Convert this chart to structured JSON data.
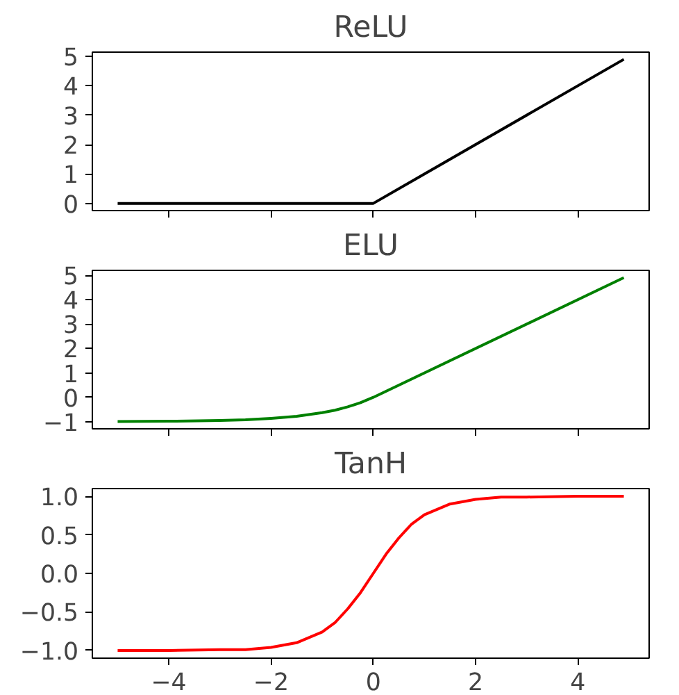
{
  "chart_data": [
    {
      "type": "line",
      "title": "ReLU",
      "xlim": [
        -5.495,
        5.395
      ],
      "xticks": [
        -4,
        -2,
        0,
        2,
        4
      ],
      "ylim": [
        -0.245,
        5.145
      ],
      "yticks": [
        0,
        1,
        2,
        3,
        4,
        5
      ],
      "tick_labels": "y",
      "grid": false,
      "series": [
        {
          "color": "#000000",
          "x": [
            -5,
            0,
            4.9
          ],
          "values": [
            0,
            0,
            4.9
          ]
        }
      ]
    },
    {
      "type": "line",
      "title": "ELU",
      "xlim": [
        -5.495,
        5.395
      ],
      "xticks": [
        -4,
        -2,
        0,
        2,
        4
      ],
      "ylim": [
        -1.29,
        5.2
      ],
      "yticks": [
        {
          "value": -1,
          "label": "−1"
        },
        0,
        1,
        2,
        3,
        4,
        5
      ],
      "tick_labels": "y",
      "grid": false,
      "series": [
        {
          "color": "#008000",
          "x": [
            -5,
            -4,
            -3,
            -2.5,
            -2,
            -1.5,
            -1,
            -0.75,
            -0.5,
            -0.25,
            0,
            4.9
          ],
          "values": [
            -0.99,
            -0.98,
            -0.95,
            -0.92,
            -0.86,
            -0.78,
            -0.63,
            -0.53,
            -0.39,
            -0.22,
            0,
            4.9
          ]
        }
      ]
    },
    {
      "type": "line",
      "title": "TanH",
      "xlim": [
        -5.495,
        5.395
      ],
      "xticks": [
        {
          "value": -4,
          "label": "−4"
        },
        {
          "value": -2,
          "label": "−2"
        },
        0,
        2,
        4
      ],
      "ylim": [
        -1.1,
        1.1
      ],
      "yticks": [
        {
          "value": -1,
          "label": "−1.0"
        },
        {
          "value": -0.5,
          "label": "−0.5"
        },
        {
          "value": 0,
          "label": "0.0"
        },
        {
          "value": 0.5,
          "label": "0.5"
        },
        {
          "value": 1,
          "label": "1.0"
        }
      ],
      "grid": false,
      "series": [
        {
          "color": "#ff0000",
          "x": [
            -5,
            -4,
            -3,
            -2.5,
            -2,
            -1.5,
            -1,
            -0.75,
            -0.5,
            -0.25,
            0,
            0.25,
            0.5,
            0.75,
            1,
            1.5,
            2,
            2.5,
            3,
            4,
            4.9
          ],
          "values": [
            -1.0,
            -1.0,
            -0.99,
            -0.99,
            -0.96,
            -0.9,
            -0.76,
            -0.64,
            -0.46,
            -0.25,
            0,
            0.25,
            0.46,
            0.64,
            0.76,
            0.9,
            0.96,
            0.99,
            0.99,
            1.0,
            1.0
          ]
        }
      ]
    }
  ]
}
